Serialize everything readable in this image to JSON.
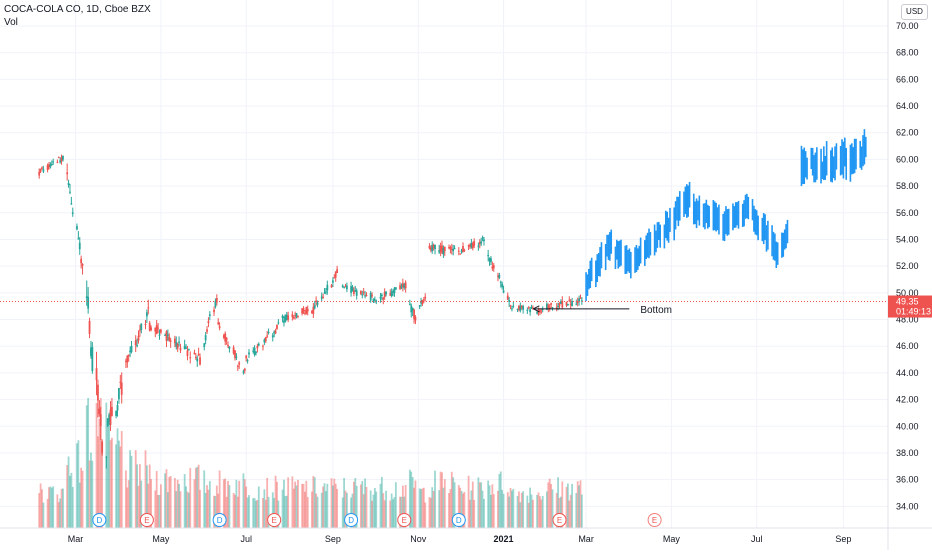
{
  "header": {
    "symbol_title": "COCA-COLA CO, 1D, Cboe BZX",
    "vol_label": "Vol",
    "currency": "USD"
  },
  "colors": {
    "up": "#26a69a",
    "down": "#ef5350",
    "projection": "#2196f3",
    "price_line": "#ef5350",
    "grid": "#f0f3fa",
    "axis_text": "#131722"
  },
  "chart_data": {
    "type": "candlestick",
    "y_axis": {
      "ylim": [
        32.6,
        71.5
      ],
      "ticks": [
        70.0,
        68.0,
        66.0,
        64.0,
        62.0,
        60.0,
        58.0,
        56.0,
        54.0,
        52.0,
        50.0,
        48.0,
        46.0,
        44.0,
        42.0,
        40.0,
        38.0,
        36.0,
        34.0
      ],
      "tick_labels": [
        "70.00",
        "68.00",
        "66.00",
        "64.00",
        "62.00",
        "60.00",
        "58.00",
        "56.00",
        "54.00",
        "52.00",
        "50.00",
        "48.00",
        "46.00",
        "44.00",
        "42.00",
        "40.00",
        "38.00",
        "36.00",
        "34.00"
      ]
    },
    "x_axis": {
      "labels": [
        {
          "text": "Mar",
          "date": "2020-03-01",
          "bold": false
        },
        {
          "text": "May",
          "date": "2020-05-01",
          "bold": false
        },
        {
          "text": "Jul",
          "date": "2020-07-01",
          "bold": false
        },
        {
          "text": "Sep",
          "date": "2020-09-01",
          "bold": false
        },
        {
          "text": "Nov",
          "date": "2020-11-01",
          "bold": false
        },
        {
          "text": "2021",
          "date": "2021-01-01",
          "bold": true
        },
        {
          "text": "Mar",
          "date": "2021-03-01",
          "bold": false
        },
        {
          "text": "May",
          "date": "2021-05-01",
          "bold": false
        },
        {
          "text": "Jul",
          "date": "2021-07-01",
          "bold": false
        },
        {
          "text": "Sep",
          "date": "2021-09-01",
          "bold": false
        }
      ]
    },
    "price_segments": [
      {
        "start": "2020-02-04",
        "end": "2020-02-21",
        "p0": 59.0,
        "p1": 60.2,
        "vol": 0.5
      },
      {
        "start": "2020-02-24",
        "end": "2020-03-06",
        "p0": 59.0,
        "p1": 51.6,
        "vol": 1.2
      },
      {
        "start": "2020-03-09",
        "end": "2020-03-13",
        "p0": 50.0,
        "p1": 45.0,
        "vol": 2.0
      },
      {
        "start": "2020-03-16",
        "end": "2020-03-23",
        "p0": 44.0,
        "p1": 37.6,
        "vol": 2.2
      },
      {
        "start": "2020-03-24",
        "end": "2020-04-03",
        "p0": 40.0,
        "p1": 43.0,
        "vol": 1.5
      },
      {
        "start": "2020-04-06",
        "end": "2020-04-22",
        "p0": 44.5,
        "p1": 48.5,
        "vol": 1.0
      },
      {
        "start": "2020-04-23",
        "end": "2020-05-29",
        "p0": 47.5,
        "p1": 45.0,
        "vol": 0.8
      },
      {
        "start": "2020-06-01",
        "end": "2020-06-10",
        "p0": 46.0,
        "p1": 49.6,
        "vol": 0.7
      },
      {
        "start": "2020-06-11",
        "end": "2020-06-30",
        "p0": 47.5,
        "p1": 44.0,
        "vol": 0.7
      },
      {
        "start": "2020-07-01",
        "end": "2020-07-24",
        "p0": 45.0,
        "p1": 47.5,
        "vol": 0.6
      },
      {
        "start": "2020-07-27",
        "end": "2020-08-14",
        "p0": 48.0,
        "p1": 48.8,
        "vol": 0.6
      },
      {
        "start": "2020-08-17",
        "end": "2020-09-04",
        "p0": 48.5,
        "p1": 51.5,
        "vol": 0.6
      },
      {
        "start": "2020-09-08",
        "end": "2020-09-30",
        "p0": 50.5,
        "p1": 49.6,
        "vol": 0.6
      },
      {
        "start": "2020-10-01",
        "end": "2020-10-23",
        "p0": 49.5,
        "p1": 50.6,
        "vol": 0.6
      },
      {
        "start": "2020-10-26",
        "end": "2020-10-30",
        "p0": 49.0,
        "p1": 48.2,
        "vol": 0.7
      },
      {
        "start": "2020-11-02",
        "end": "2020-11-06",
        "p0": 49.2,
        "p1": 49.6,
        "vol": 0.5
      },
      {
        "start": "2020-11-09",
        "end": "2020-11-27",
        "p0": 53.5,
        "p1": 53.0,
        "vol": 0.7
      },
      {
        "start": "2020-11-30",
        "end": "2020-12-18",
        "p0": 53.0,
        "p1": 54.0,
        "vol": 0.6
      },
      {
        "start": "2020-12-21",
        "end": "2021-01-05",
        "p0": 53.0,
        "p1": 49.5,
        "vol": 0.7
      },
      {
        "start": "2021-01-06",
        "end": "2021-01-29",
        "p0": 49.0,
        "p1": 48.6,
        "vol": 0.5
      },
      {
        "start": "2021-02-01",
        "end": "2021-02-26",
        "p0": 49.0,
        "p1": 49.4,
        "vol": 0.6
      }
    ],
    "projection_segments": [
      {
        "start": "2021-03-01",
        "end": "2021-03-19",
        "p0": 50.5,
        "p1": 54.0,
        "vol": 0.8
      },
      {
        "start": "2021-03-22",
        "end": "2021-04-02",
        "p0": 53.0,
        "p1": 52.0,
        "vol": 0.8
      },
      {
        "start": "2021-04-05",
        "end": "2021-04-23",
        "p0": 52.5,
        "p1": 54.5,
        "vol": 0.6
      },
      {
        "start": "2021-04-26",
        "end": "2021-05-14",
        "p0": 54.5,
        "p1": 57.2,
        "vol": 0.9
      },
      {
        "start": "2021-05-17",
        "end": "2021-06-04",
        "p0": 56.0,
        "p1": 55.5,
        "vol": 0.9
      },
      {
        "start": "2021-06-07",
        "end": "2021-06-25",
        "p0": 55.0,
        "p1": 56.5,
        "vol": 0.8
      },
      {
        "start": "2021-06-28",
        "end": "2021-07-16",
        "p0": 56.0,
        "p1": 53.0,
        "vol": 0.8
      },
      {
        "start": "2021-07-19",
        "end": "2021-07-23",
        "p0": 53.5,
        "p1": 54.5,
        "vol": 0.6
      },
      {
        "start": "2021-08-02",
        "end": "2021-09-06",
        "p0": 59.5,
        "p1": 60.0,
        "vol": 1.1
      },
      {
        "start": "2021-09-07",
        "end": "2021-09-17",
        "p0": 60.0,
        "p1": 60.8,
        "vol": 1.0
      }
    ],
    "earnings_markers": [
      {
        "date": "2020-03-18",
        "type": "D"
      },
      {
        "date": "2020-04-21",
        "type": "E"
      },
      {
        "date": "2020-06-12",
        "type": "D"
      },
      {
        "date": "2020-07-21",
        "type": "E"
      },
      {
        "date": "2020-09-14",
        "type": "D"
      },
      {
        "date": "2020-10-22",
        "type": "E"
      },
      {
        "date": "2020-11-30",
        "type": "D"
      },
      {
        "date": "2021-02-10",
        "type": "E"
      },
      {
        "date": "2021-04-19",
        "type": "E",
        "future": true
      }
    ],
    "current_price": {
      "value": 49.35,
      "label": "49.35",
      "countdown": "01:49:13"
    },
    "annotation": {
      "text": "Bottom",
      "date": "2021-01-18",
      "price": 48.8
    }
  }
}
